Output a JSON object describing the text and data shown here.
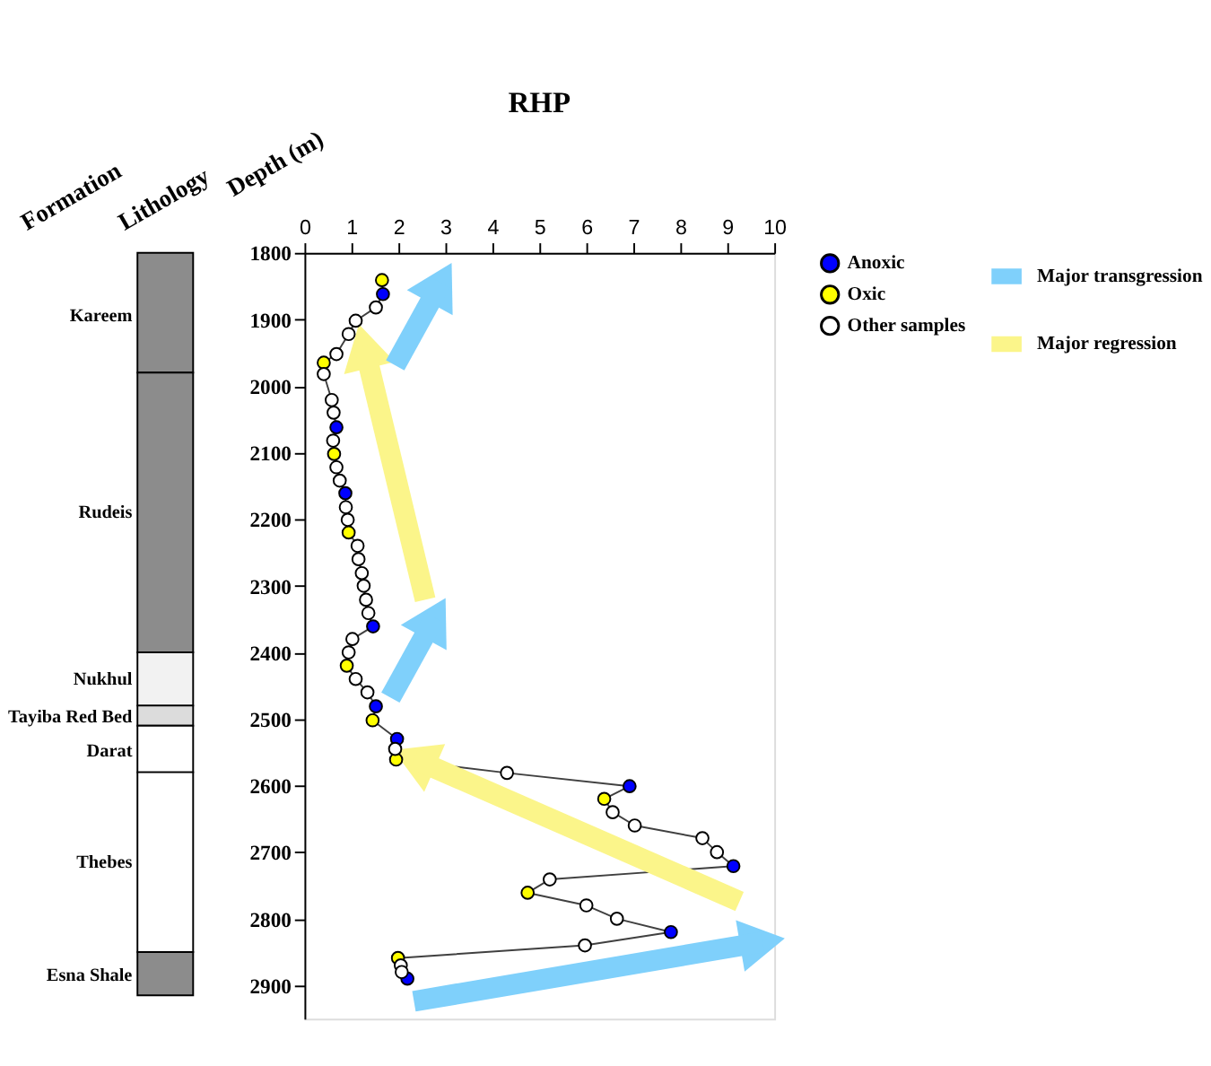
{
  "chart_data": {
    "type": "scatter",
    "title": "RHP",
    "ylabel": "Depth (m)",
    "xlim": [
      0,
      10
    ],
    "xticks": [
      0,
      1,
      2,
      3,
      4,
      5,
      6,
      7,
      8,
      9,
      10
    ],
    "ylim": [
      2950,
      1800
    ],
    "yticks": [
      1800,
      1900,
      2000,
      2100,
      2200,
      2300,
      2400,
      2500,
      2600,
      2700,
      2800,
      2900
    ],
    "grid": false,
    "legend": "right",
    "annotations": [
      "Formation",
      "Lithology",
      "Kareem",
      "Rudeis",
      "Nukhul",
      "Tayiba Red Bed",
      "Darat",
      "Thebes",
      "Esna Shale"
    ],
    "series": [
      {
        "type": "line",
        "color": "#404040",
        "marker": "none",
        "x": [
          1.65,
          1.67,
          1.52,
          1.09,
          0.94,
          0.68,
          0.41,
          0.41,
          0.58,
          0.62,
          0.68,
          0.61,
          0.63,
          0.68,
          0.75,
          0.87,
          0.88,
          0.92,
          0.94,
          1.13,
          1.15,
          1.22,
          1.26,
          1.31,
          1.36,
          1.46,
          1.02,
          0.94,
          0.9,
          1.09,
          1.34,
          1.52,
          1.45,
          1.97,
          1.93,
          1.95,
          4.31,
          6.92,
          6.38,
          6.56,
          7.03,
          8.47,
          8.78,
          9.13,
          5.22,
          4.75,
          6.0,
          6.65,
          7.8,
          5.97,
          1.99,
          2.05,
          2.07,
          2.19
        ],
        "values": [
          1841,
          1862,
          1882,
          1902,
          1922,
          1952,
          1965,
          1982,
          2021,
          2040,
          2062,
          2082,
          2102,
          2122,
          2142,
          2161,
          2182,
          2201,
          2220,
          2240,
          2260,
          2281,
          2300,
          2321,
          2341,
          2361,
          2380,
          2400,
          2420,
          2440,
          2460,
          2481,
          2502,
          2530,
          2545,
          2561,
          2581,
          2601,
          2620,
          2640,
          2660,
          2679,
          2700,
          2721,
          2741,
          2761,
          2780,
          2800,
          2820,
          2840,
          2859,
          2870,
          2880,
          2890
        ]
      },
      {
        "type": "line",
        "name": "Major transgression",
        "color": "#7fd0fb",
        "marker": "none",
        "x": [
          1.93,
          2.9,
          null,
          1.83,
          2.77,
          null,
          2.33,
          9.75
        ],
        "values": [
          1969,
          1845,
          null,
          2468,
          2348,
          null,
          2924,
          2835
        ]
      },
      {
        "type": "line",
        "name": "Major regression",
        "color": "#fbf58a",
        "marker": "none",
        "x": [
          2.57,
          1.27,
          null,
          9.26,
          2.33
        ],
        "values": [
          2321,
          1940,
          null,
          2774,
          2560
        ]
      },
      {
        "type": "scatter",
        "name": "Anoxic",
        "color": "#0000ff",
        "marker": "circle",
        "x": [
          1.67,
          0.68,
          0.87,
          1.46,
          1.52,
          1.97,
          6.92,
          9.13,
          7.8,
          2.19
        ],
        "values": [
          1862,
          2062,
          2161,
          2361,
          2481,
          2530,
          2601,
          2721,
          2820,
          2890
        ]
      },
      {
        "type": "scatter",
        "name": "Oxic",
        "color": "#ffff00",
        "marker": "circle",
        "x": [
          1.65,
          0.41,
          0.63,
          0.94,
          0.9,
          1.45,
          1.95,
          6.38,
          4.75,
          1.99
        ],
        "values": [
          1841,
          1965,
          2102,
          2220,
          2420,
          2502,
          2561,
          2620,
          2761,
          2859
        ]
      },
      {
        "type": "scatter",
        "name": "Other samples",
        "color": "#ffffff",
        "marker": "circle",
        "x": [
          1.52,
          1.09,
          0.94,
          0.68,
          0.41,
          0.58,
          0.62,
          0.61,
          0.68,
          0.75,
          0.88,
          0.92,
          1.13,
          1.15,
          1.22,
          1.26,
          1.31,
          1.36,
          1.02,
          0.94,
          1.09,
          1.34,
          1.93,
          4.31,
          6.56,
          7.03,
          8.47,
          8.78,
          5.22,
          6.0,
          6.65,
          5.97,
          2.05,
          2.07
        ],
        "values": [
          1882,
          1902,
          1922,
          1952,
          1982,
          2021,
          2040,
          2082,
          2122,
          2142,
          2182,
          2201,
          2240,
          2260,
          2281,
          2300,
          2321,
          2341,
          2380,
          2400,
          2440,
          2460,
          2545,
          2581,
          2640,
          2660,
          2679,
          2700,
          2741,
          2780,
          2800,
          2840,
          2870,
          2880
        ]
      }
    ]
  }
}
